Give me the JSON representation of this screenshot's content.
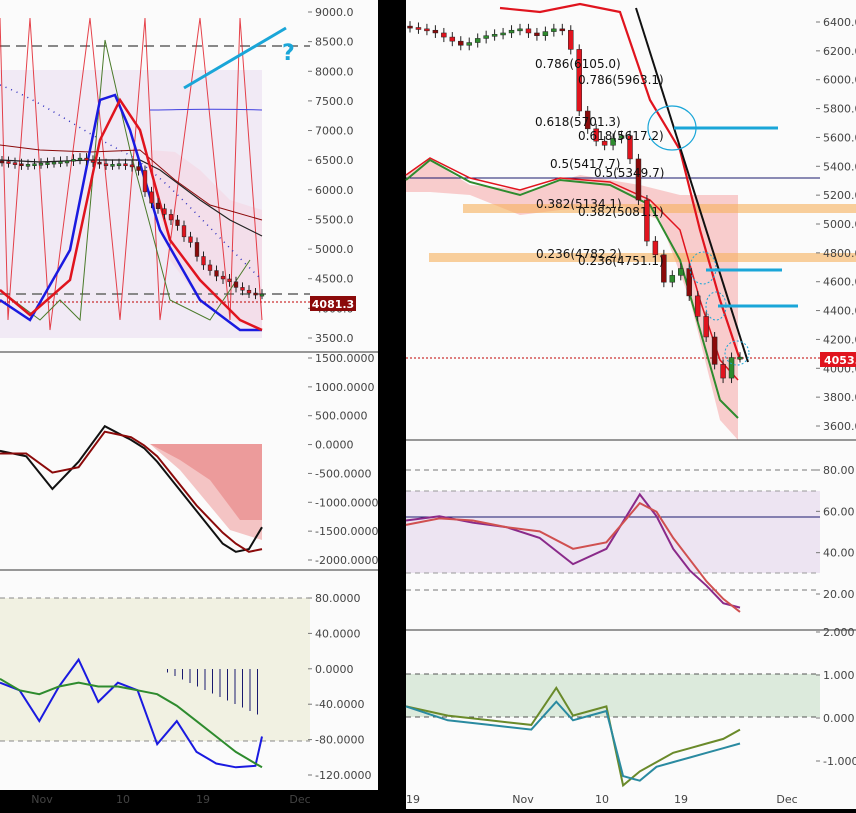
{
  "colors": {
    "up": "#2e8b2e",
    "down": "#e0141e",
    "down_dark": "#8b0a0a",
    "cyan": "#1aa6d8",
    "fib_band": "#f7b05c",
    "price_line": "#c00000"
  },
  "left": {
    "price_axis": [
      "9000.0",
      "8500.0",
      "8000.0",
      "7500.0",
      "7000.0",
      "6500.0",
      "6000.0",
      "5500.0",
      "5000.0",
      "4500.0",
      "4000.0",
      "3500.0"
    ],
    "price_tag": "4081.3",
    "question_mark": "?",
    "macd_axis": [
      "1500.0000",
      "1000.0000",
      "500.0000",
      "0.0000",
      "-500.0000",
      "-1000.0000",
      "-1500.0000",
      "-2000.0000"
    ],
    "osc_axis": [
      "80.0000",
      "40.0000",
      "0.0000",
      "-40.0000",
      "-80.0000",
      "-120.0000"
    ],
    "time_axis": [
      "Nov",
      "10",
      "19",
      "Dec"
    ]
  },
  "right": {
    "price_axis": [
      "6400.00",
      "6200.00",
      "6000.00",
      "5800.00",
      "5600.00",
      "5400.00",
      "5200.00",
      "5000.00",
      "4800.00",
      "4600.00",
      "4400.00",
      "4200.00",
      "4000.00",
      "3800.00",
      "3600.00"
    ],
    "price_tag": "4053.",
    "fib_labels": [
      "0.786(6105.0)",
      "0.786(5963.1)",
      "0.618(5701.3)",
      "0.618(5617.2)",
      "0.5(5417.7)",
      "0.5(5349.7)",
      "0.382(5134.1)",
      "0.382(5081.1)",
      "0.236(4782.2)",
      "0.236(4751.1)"
    ],
    "rsi_axis": [
      "80.00",
      "60.00",
      "40.00",
      "20.00"
    ],
    "osc_axis": [
      "2.000",
      "1.000",
      "0.000",
      "-1.000"
    ],
    "time_axis": [
      "19",
      "Nov",
      "10",
      "19",
      "Dec"
    ]
  },
  "chart_data": [
    {
      "type": "candlestick",
      "panel": "left-price",
      "ylim": [
        3300,
        9100
      ],
      "x": [
        0,
        1,
        2,
        3,
        4,
        5,
        6,
        7,
        8,
        9,
        10,
        11,
        12,
        13,
        14,
        15,
        16,
        17,
        18,
        19,
        20,
        21,
        22,
        23,
        24,
        25,
        26,
        27,
        28,
        29,
        30,
        31,
        32,
        33,
        34,
        35,
        36,
        37,
        38,
        39,
        40
      ],
      "open": [
        6450,
        6440,
        6420,
        6400,
        6380,
        6390,
        6400,
        6410,
        6420,
        6430,
        6440,
        6450,
        6480,
        6500,
        6460,
        6430,
        6400,
        6380,
        6390,
        6400,
        6380,
        6350,
        6280,
        5900,
        5700,
        5600,
        5500,
        5400,
        5300,
        5100,
        5000,
        4750,
        4600,
        4500,
        4400,
        4350,
        4300,
        4200,
        4150,
        4100,
        4080
      ],
      "close": [
        6440,
        6420,
        6400,
        6380,
        6390,
        6400,
        6410,
        6420,
        6430,
        6440,
        6450,
        6480,
        6500,
        6460,
        6430,
        6400,
        6380,
        6390,
        6400,
        6380,
        6350,
        6280,
        5900,
        5700,
        5600,
        5500,
        5400,
        5300,
        5100,
        5000,
        4750,
        4600,
        4500,
        4400,
        4350,
        4300,
        4200,
        4150,
        4100,
        4080,
        4081
      ],
      "price_last": 4081.3
    },
    {
      "type": "line",
      "panel": "left-macd",
      "ylim": [
        -2100,
        1600
      ],
      "x": [
        0,
        4,
        8,
        12,
        16,
        20,
        22,
        24,
        26,
        28,
        30,
        32,
        34,
        36,
        38,
        40
      ],
      "series": [
        {
          "values": [
            -100,
            -200,
            -800,
            -300,
            350,
            100,
            -50,
            -300,
            -600,
            -900,
            -1200,
            -1500,
            -1800,
            -1950,
            -1900,
            -1500
          ]
        },
        {
          "values": [
            -150,
            -150,
            -500,
            -400,
            250,
            150,
            0,
            -200,
            -500,
            -800,
            -1100,
            -1350,
            -1600,
            -1800,
            -1950,
            -1900
          ]
        }
      ]
    },
    {
      "type": "line",
      "panel": "left-osc",
      "ylim": [
        -130,
        100
      ],
      "x": [
        0,
        3,
        6,
        9,
        12,
        15,
        18,
        21,
        24,
        27,
        30,
        33,
        36,
        39,
        40
      ],
      "series": [
        {
          "values": [
            -10,
            -20,
            -60,
            -15,
            20,
            -35,
            -10,
            -20,
            -90,
            -60,
            -100,
            -115,
            -120,
            -118,
            -80
          ]
        },
        {
          "values": [
            -5,
            -20,
            -25,
            -15,
            -10,
            -15,
            -15,
            -20,
            -25,
            -40,
            -60,
            -80,
            -100,
            -115,
            -120
          ]
        }
      ]
    },
    {
      "type": "candlestick",
      "panel": "right-price",
      "ylim": [
        3550,
        6500
      ],
      "x": [
        0,
        1,
        2,
        3,
        4,
        5,
        6,
        7,
        8,
        9,
        10,
        11,
        12,
        13,
        14,
        15,
        16,
        17,
        18,
        19,
        20,
        21,
        22,
        23,
        24,
        25,
        26,
        27,
        28,
        29,
        30,
        31,
        32,
        33,
        34,
        35,
        36,
        37,
        38,
        39
      ],
      "open": [
        6470,
        6460,
        6450,
        6440,
        6420,
        6390,
        6360,
        6330,
        6350,
        6380,
        6400,
        6410,
        6420,
        6440,
        6450,
        6420,
        6400,
        6430,
        6450,
        6440,
        6300,
        5850,
        5720,
        5630,
        5600,
        5650,
        5670,
        5500,
        5200,
        4900,
        4800,
        4600,
        4650,
        4700,
        4500,
        4350,
        4200,
        4000,
        3900,
        4050
      ],
      "close": [
        6460,
        6450,
        6440,
        6420,
        6390,
        6360,
        6330,
        6350,
        6380,
        6400,
        6410,
        6420,
        6440,
        6450,
        6420,
        6400,
        6430,
        6450,
        6440,
        6300,
        5850,
        5720,
        5630,
        5600,
        5650,
        5670,
        5500,
        5200,
        4900,
        4800,
        4600,
        4650,
        4700,
        4500,
        4350,
        4200,
        4000,
        3900,
        4050,
        4053
      ],
      "price_last": 4053,
      "fib_levels": [
        6105.0,
        5963.1,
        5701.3,
        5617.2,
        5417.7,
        5349.7,
        5134.1,
        5081.1,
        4782.2,
        4751.1
      ]
    },
    {
      "type": "line",
      "panel": "right-rsi",
      "ylim": [
        10,
        95
      ],
      "x": [
        0,
        4,
        8,
        12,
        16,
        20,
        24,
        28,
        30,
        32,
        34,
        36,
        38,
        40
      ],
      "series": [
        {
          "values": [
            58,
            60,
            57,
            55,
            50,
            38,
            45,
            70,
            60,
            45,
            35,
            28,
            20,
            18
          ]
        },
        {
          "values": [
            56,
            59,
            58,
            55,
            53,
            45,
            48,
            66,
            62,
            50,
            40,
            30,
            22,
            16
          ]
        }
      ]
    },
    {
      "type": "line",
      "panel": "right-osc",
      "ylim": [
        -1.3,
        2.1
      ],
      "x": [
        0,
        5,
        10,
        15,
        18,
        20,
        22,
        24,
        26,
        28,
        30,
        32,
        34,
        36,
        38,
        40
      ],
      "series": [
        {
          "values": [
            0.5,
            0.3,
            0.2,
            0.1,
            0.9,
            0.3,
            0.4,
            0.5,
            -1.2,
            -0.9,
            -0.7,
            -0.5,
            -0.4,
            -0.3,
            -0.2,
            0.0
          ]
        },
        {
          "values": [
            0.5,
            0.2,
            0.1,
            0.0,
            0.6,
            0.2,
            0.3,
            0.4,
            -1.0,
            -1.1,
            -0.8,
            -0.7,
            -0.6,
            -0.5,
            -0.4,
            -0.3
          ]
        }
      ]
    }
  ]
}
